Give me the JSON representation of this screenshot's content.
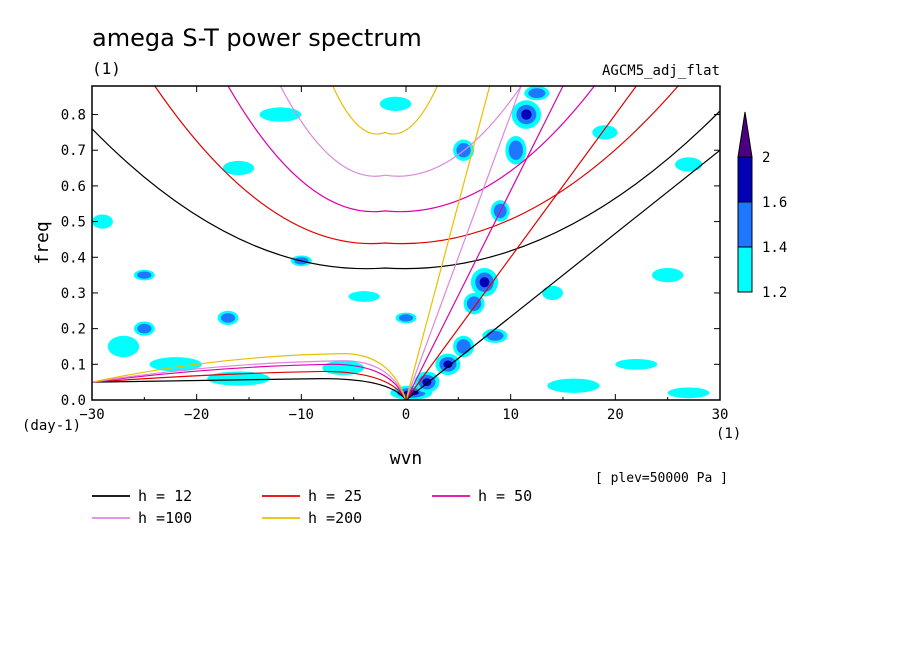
{
  "chart_data": {
    "type": "contour",
    "title": "amega S-T power spectrum",
    "subtitle_left": "(1)",
    "subtitle_right": "AGCM5_adj_flat",
    "xlabel": "wvn",
    "ylabel": "freq",
    "x_unit": "(1)",
    "y_unit": "(day-1)",
    "level_note": "[ plev=50000 Pa ]",
    "xlim": [
      -30,
      30
    ],
    "ylim": [
      0,
      0.88
    ],
    "x_ticks": [
      "-30",
      "-20",
      "-10",
      "0",
      "10",
      "20",
      "30"
    ],
    "y_ticks": [
      "0.0",
      "0.1",
      "0.2",
      "0.3",
      "0.4",
      "0.5",
      "0.6",
      "0.7",
      "0.8"
    ],
    "colorbar": {
      "labels": [
        "1.2",
        "1.4",
        "1.6",
        "2"
      ],
      "levels": [
        1.2,
        1.4,
        1.6,
        2
      ],
      "colors": [
        "#00ffff",
        "#1e78ff",
        "#0000b4",
        "#4b0082"
      ],
      "extend": "max"
    },
    "legend": [
      {
        "label": "h = 12",
        "h": 12,
        "color": "#000000"
      },
      {
        "label": "h = 25",
        "h": 25,
        "color": "#e00000"
      },
      {
        "label": "h = 50",
        "h": 50,
        "color": "#dd00aa"
      },
      {
        "label": "h =100",
        "h": 100,
        "color": "#dd88dd"
      },
      {
        "label": "h =200",
        "h": 200,
        "color": "#e8c000"
      }
    ],
    "dispersion_curves": [
      {
        "h": 12,
        "kelvin_end": [
          30,
          0.7
        ],
        "ig_min": [
          -2,
          0.37
        ],
        "ig_ends": [
          [
            -30,
            0.76
          ],
          [
            30,
            0.81
          ]
        ],
        "rossby_max": [
          -8,
          0.06
        ]
      },
      {
        "h": 25,
        "kelvin_end": [
          22,
          0.88
        ],
        "ig_min": [
          -2,
          0.44
        ],
        "ig_ends": [
          [
            -24,
            0.88
          ],
          [
            26,
            0.88
          ]
        ],
        "rossby_max": [
          -8,
          0.08
        ]
      },
      {
        "h": 50,
        "kelvin_end": [
          15,
          0.88
        ],
        "ig_min": [
          -2,
          0.53
        ],
        "ig_ends": [
          [
            -17,
            0.88
          ],
          [
            18,
            0.88
          ]
        ],
        "rossby_max": [
          -7,
          0.1
        ]
      },
      {
        "h": 100,
        "kelvin_end": [
          11,
          0.88
        ],
        "ig_min": [
          -2,
          0.63
        ],
        "ig_ends": [
          [
            -12,
            0.88
          ],
          [
            11,
            0.88
          ]
        ],
        "rossby_max": [
          -6,
          0.11
        ]
      },
      {
        "h": 200,
        "kelvin_end": [
          8,
          0.88
        ],
        "ig_min": [
          -2,
          0.75
        ],
        "ig_ends": [
          [
            -7,
            0.88
          ],
          [
            3,
            0.88
          ]
        ],
        "rossby_max": [
          -6,
          0.13
        ]
      }
    ],
    "power_blobs": [
      {
        "x": 0.5,
        "y": 0.02,
        "rx": 2.0,
        "ry": 0.02,
        "level": 3
      },
      {
        "x": 2,
        "y": 0.05,
        "rx": 1.2,
        "ry": 0.03,
        "level": 3
      },
      {
        "x": 4,
        "y": 0.1,
        "rx": 1.2,
        "ry": 0.03,
        "level": 3
      },
      {
        "x": 5.5,
        "y": 0.15,
        "rx": 1.0,
        "ry": 0.03,
        "level": 2
      },
      {
        "x": 7.5,
        "y": 0.33,
        "rx": 1.3,
        "ry": 0.04,
        "level": 3
      },
      {
        "x": 6.5,
        "y": 0.27,
        "rx": 1.0,
        "ry": 0.03,
        "level": 2
      },
      {
        "x": 11.5,
        "y": 0.8,
        "rx": 1.4,
        "ry": 0.04,
        "level": 3
      },
      {
        "x": 12.5,
        "y": 0.86,
        "rx": 1.2,
        "ry": 0.02,
        "level": 2
      },
      {
        "x": 10.5,
        "y": 0.7,
        "rx": 1.0,
        "ry": 0.04,
        "level": 2
      },
      {
        "x": 5.5,
        "y": 0.7,
        "rx": 1.0,
        "ry": 0.03,
        "level": 2
      },
      {
        "x": 9,
        "y": 0.53,
        "rx": 0.9,
        "ry": 0.03,
        "level": 2
      },
      {
        "x": 8.5,
        "y": 0.18,
        "rx": 1.2,
        "ry": 0.02,
        "level": 2
      },
      {
        "x": -27,
        "y": 0.15,
        "rx": 1.5,
        "ry": 0.03,
        "level": 1
      },
      {
        "x": -22,
        "y": 0.1,
        "rx": 2.5,
        "ry": 0.02,
        "level": 1
      },
      {
        "x": -16,
        "y": 0.06,
        "rx": 3.0,
        "ry": 0.02,
        "level": 1
      },
      {
        "x": -6,
        "y": 0.09,
        "rx": 2.0,
        "ry": 0.02,
        "level": 1
      },
      {
        "x": -25,
        "y": 0.2,
        "rx": 1.0,
        "ry": 0.02,
        "level": 2
      },
      {
        "x": -17,
        "y": 0.23,
        "rx": 1.0,
        "ry": 0.02,
        "level": 2
      },
      {
        "x": 0,
        "y": 0.23,
        "rx": 1.0,
        "ry": 0.015,
        "level": 2
      },
      {
        "x": -4,
        "y": 0.29,
        "rx": 1.5,
        "ry": 0.015,
        "level": 1
      },
      {
        "x": -10,
        "y": 0.39,
        "rx": 1.0,
        "ry": 0.015,
        "level": 2
      },
      {
        "x": -25,
        "y": 0.35,
        "rx": 1.0,
        "ry": 0.015,
        "level": 2
      },
      {
        "x": -16,
        "y": 0.65,
        "rx": 1.5,
        "ry": 0.02,
        "level": 1
      },
      {
        "x": 19,
        "y": 0.75,
        "rx": 1.2,
        "ry": 0.02,
        "level": 1
      },
      {
        "x": 27,
        "y": 0.66,
        "rx": 1.3,
        "ry": 0.02,
        "level": 1
      },
      {
        "x": -12,
        "y": 0.8,
        "rx": 2.0,
        "ry": 0.02,
        "level": 1
      },
      {
        "x": -1,
        "y": 0.83,
        "rx": 1.5,
        "ry": 0.02,
        "level": 1
      },
      {
        "x": 25,
        "y": 0.35,
        "rx": 1.5,
        "ry": 0.02,
        "level": 1
      },
      {
        "x": 16,
        "y": 0.04,
        "rx": 2.5,
        "ry": 0.02,
        "level": 1
      },
      {
        "x": 22,
        "y": 0.1,
        "rx": 2.0,
        "ry": 0.015,
        "level": 1
      },
      {
        "x": 27,
        "y": 0.02,
        "rx": 2.0,
        "ry": 0.015,
        "level": 1
      },
      {
        "x": -29,
        "y": 0.5,
        "rx": 1.0,
        "ry": 0.02,
        "level": 1
      },
      {
        "x": 14,
        "y": 0.3,
        "rx": 1.0,
        "ry": 0.02,
        "level": 1
      }
    ]
  }
}
